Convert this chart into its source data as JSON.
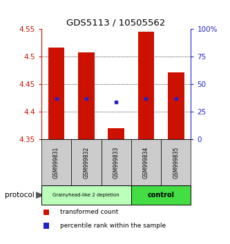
{
  "title": "GDS5113 / 10505562",
  "samples": [
    "GSM999831",
    "GSM999832",
    "GSM999833",
    "GSM999834",
    "GSM999835"
  ],
  "bar_bottom": 4.35,
  "bar_top": [
    4.517,
    4.508,
    4.37,
    4.545,
    4.472
  ],
  "blue_dot_y": [
    4.424,
    4.424,
    4.418,
    4.424,
    4.424
  ],
  "ylim": [
    4.35,
    4.55
  ],
  "yticks_left": [
    4.35,
    4.4,
    4.45,
    4.5,
    4.55
  ],
  "ytick_labels_left": [
    "4.35",
    "4.4",
    "4.45",
    "4.5",
    "4.55"
  ],
  "yticks_right_pct": [
    0,
    25,
    50,
    75,
    100
  ],
  "ytick_labels_right": [
    "0",
    "25",
    "50",
    "75",
    "100%"
  ],
  "bar_color": "#cc1100",
  "dot_color": "#2222cc",
  "group1_indices": [
    0,
    1,
    2
  ],
  "group2_indices": [
    3,
    4
  ],
  "group1_label": "Grainyhead-like 2 depletion",
  "group2_label": "control",
  "group1_color": "#bbffbb",
  "group2_color": "#44dd44",
  "protocol_label": "protocol",
  "legend_red_label": "transformed count",
  "legend_blue_label": "percentile rank within the sample",
  "bar_width": 0.55,
  "xlim": [
    -0.5,
    4.5
  ]
}
